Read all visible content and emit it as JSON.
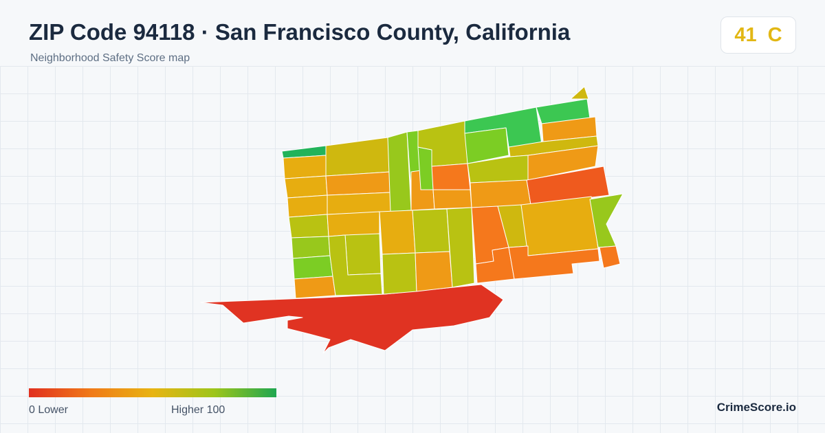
{
  "header": {
    "title": "ZIP Code 94118 · San Francisco County, California",
    "subtitle": "Neighborhood Safety Score map"
  },
  "score": {
    "value": "41",
    "grade": "C",
    "color": "#e2b714"
  },
  "legend": {
    "min_label": "0  Lower",
    "max_label": "Higher  100",
    "scale_min": 0,
    "scale_max": 100,
    "colors": [
      "#e1301f",
      "#f07a18",
      "#e8b412",
      "#9dc51a",
      "#1fa650"
    ]
  },
  "brand": "CrimeScore.io",
  "map": {
    "region_colors": {
      "red": "#e03322",
      "red_orange": "#ef5a1e",
      "orange": "#f5781c",
      "amber": "#ef9a16",
      "gold": "#e7ad10",
      "olive_gold": "#cfb80f",
      "olive": "#b9c212",
      "lime": "#98c81c",
      "yellow_green": "#7ccd24",
      "green": "#57c83c",
      "bright_green": "#3cc752",
      "teal_green": "#22b35a"
    }
  }
}
